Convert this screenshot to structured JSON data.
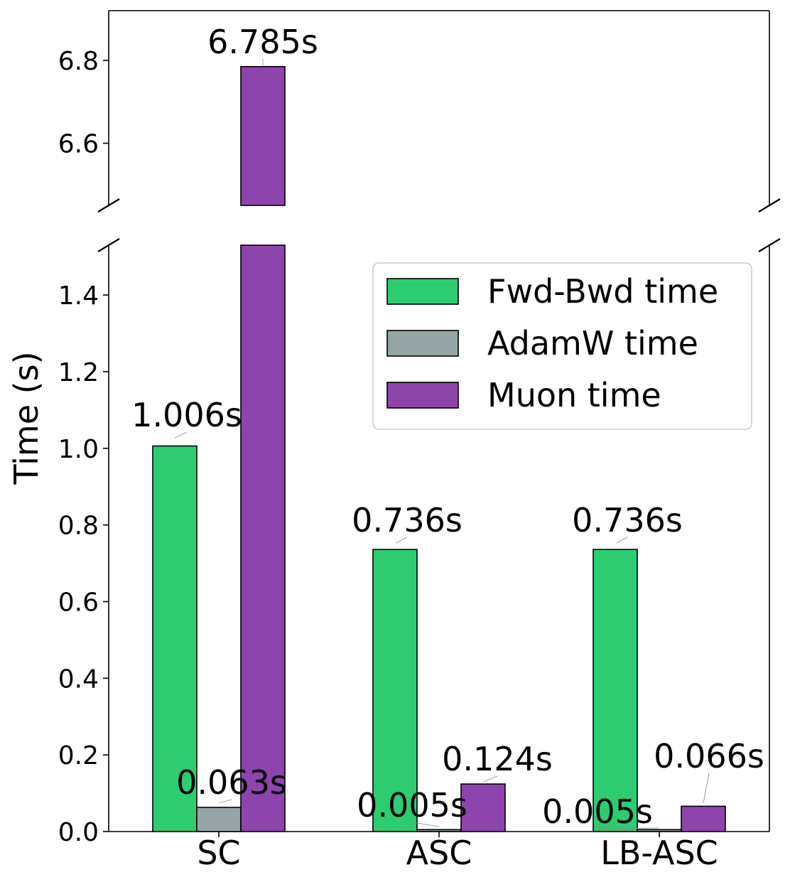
{
  "chart_data": {
    "type": "bar",
    "ylabel": "Time (s)",
    "xlabel": "",
    "categories": [
      "SC",
      "ASC",
      "LB-ASC"
    ],
    "series": [
      {
        "name": "Fwd-Bwd time",
        "color": "#2ecc71",
        "values": [
          1.006,
          0.736,
          0.736
        ]
      },
      {
        "name": "AdamW time",
        "color": "#95a5a6",
        "values": [
          0.063,
          0.005,
          0.005
        ]
      },
      {
        "name": "Muon time",
        "color": "#8e44ad",
        "values": [
          6.785,
          0.124,
          0.066
        ]
      }
    ],
    "data_labels": [
      [
        "1.006s",
        "0.736s",
        "0.736s"
      ],
      [
        "0.063s",
        "0.005s",
        "0.005s"
      ],
      [
        "6.785s",
        "0.124s",
        "0.066s"
      ]
    ],
    "broken_axis": true,
    "upper_ylim": [
      6.45,
      6.92
    ],
    "lower_ylim": [
      0,
      1.53
    ],
    "upper_yticks": [
      "6.6",
      "6.8"
    ],
    "lower_yticks": [
      "0.0",
      "0.2",
      "0.4",
      "0.6",
      "0.8",
      "1.0",
      "1.2",
      "1.4"
    ],
    "legend_position": "upper-right",
    "grid": false
  }
}
